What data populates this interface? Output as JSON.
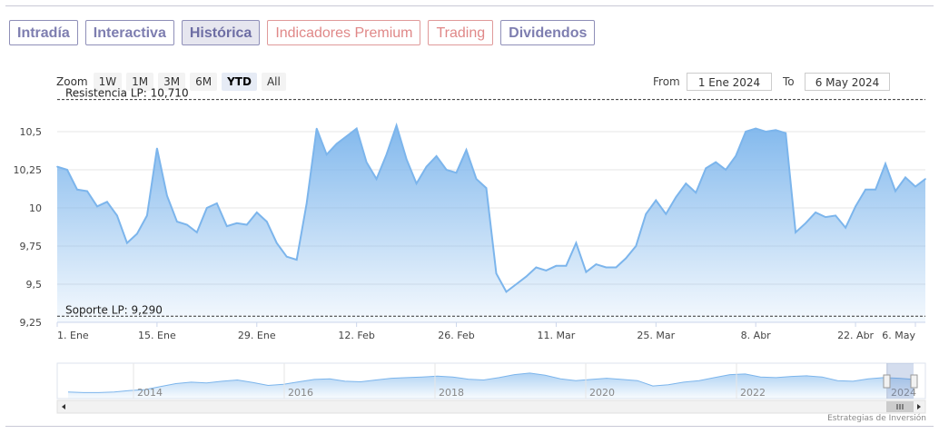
{
  "tabs": [
    {
      "label": "Intradía",
      "style": "normal"
    },
    {
      "label": "Interactiva",
      "style": "normal"
    },
    {
      "label": "Histórica",
      "style": "active"
    },
    {
      "label": "Indicadores Premium",
      "style": "premium"
    },
    {
      "label": "Trading",
      "style": "premium"
    },
    {
      "label": "Dividendos",
      "style": "normal"
    }
  ],
  "zoom": {
    "label": "Zoom",
    "buttons": [
      "1W",
      "1M",
      "3M",
      "6M",
      "YTD",
      "All"
    ],
    "selected": "YTD"
  },
  "range": {
    "from_label": "From",
    "from_value": "1 Ene 2024",
    "to_label": "To",
    "to_value": "6 May 2024"
  },
  "credit": "Estrategias de Inversión",
  "colors": {
    "accent": "#7cb5ec",
    "tab": "#7e7eb0",
    "premium": "#e08888"
  },
  "chart_data": {
    "type": "area",
    "ylim": [
      9.25,
      10.72
    ],
    "y_ticks": [
      "10,5",
      "10,25",
      "10",
      "9,75",
      "9,5",
      "9,25"
    ],
    "y_tick_values": [
      10.5,
      10.25,
      10,
      9.75,
      9.5,
      9.25
    ],
    "x_ticks": [
      "1. Ene",
      "15. Ene",
      "29. Ene",
      "12. Feb",
      "26. Feb",
      "11. Mar",
      "25. Mar",
      "8. Abr",
      "22. Abr",
      "6. May"
    ],
    "annotations": [
      {
        "label": "Resistencia LP: 10,710",
        "value": 10.71
      },
      {
        "label": "Soporte LP: 9,290",
        "value": 9.29
      }
    ],
    "series": [
      {
        "values": [
          10.27,
          10.25,
          10.12,
          10.11,
          10.01,
          10.04,
          9.95,
          9.77,
          9.83,
          9.95,
          10.39,
          10.08,
          9.91,
          9.89,
          9.84,
          10.0,
          10.03,
          9.88,
          9.9,
          9.89,
          9.97,
          9.91,
          9.77,
          9.68,
          9.66,
          10.03,
          10.52,
          10.35,
          10.42,
          10.47,
          10.52,
          10.3,
          10.19,
          10.35,
          10.54,
          10.32,
          10.16,
          10.27,
          10.34,
          10.25,
          10.23,
          10.38,
          10.19,
          10.13,
          9.57,
          9.45,
          9.5,
          9.55,
          9.61,
          9.59,
          9.62,
          9.62,
          9.77,
          9.58,
          9.63,
          9.61,
          9.61,
          9.67,
          9.75,
          9.96,
          10.05,
          9.96,
          10.07,
          10.16,
          10.1,
          10.26,
          10.3,
          10.25,
          10.34,
          10.5,
          10.52,
          10.5,
          10.51,
          10.49,
          9.84,
          9.9,
          9.97,
          9.94,
          9.95,
          9.87,
          10.01,
          10.12,
          10.12,
          10.29,
          10.11,
          10.2,
          10.14,
          10.19
        ]
      }
    ],
    "navigator": {
      "x_ticks": [
        "2014",
        "2016",
        "2018",
        "2020",
        "2022",
        "2024"
      ]
    }
  }
}
